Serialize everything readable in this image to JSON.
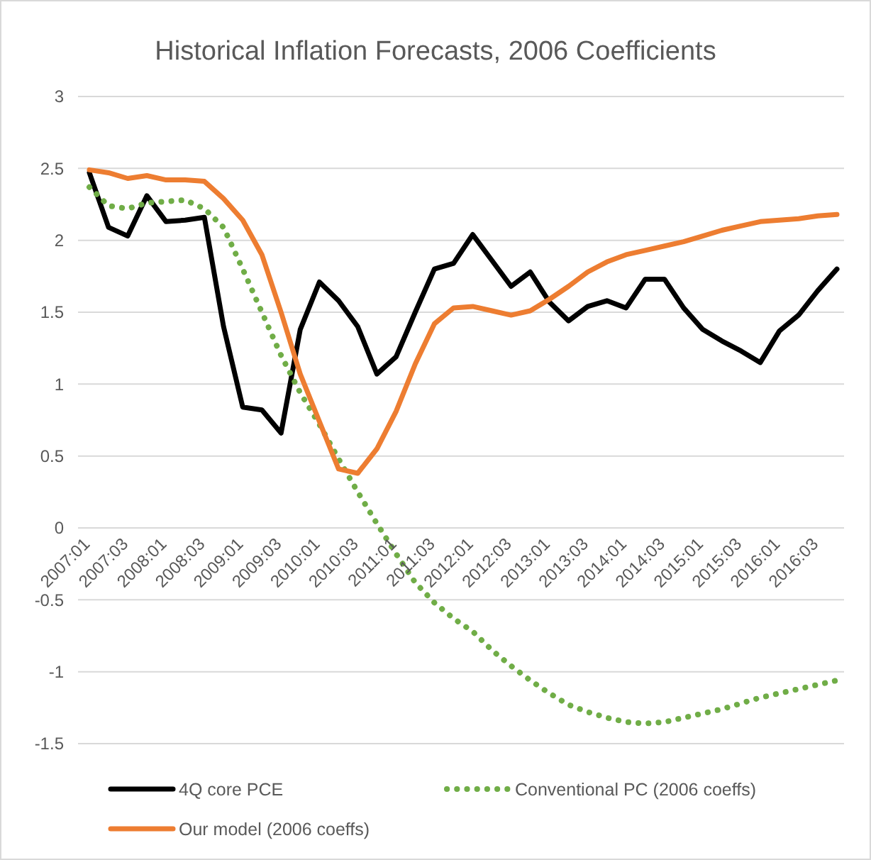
{
  "chart_data": {
    "type": "line",
    "title": "Historical Inflation Forecasts, 2006 Coefficients",
    "categories": [
      "2007:01",
      null,
      "2007:03",
      null,
      "2008:01",
      null,
      "2008:03",
      null,
      "2009:01",
      null,
      "2009:03",
      null,
      "2010:01",
      null,
      "2010:03",
      null,
      "2011:01",
      null,
      "2011:03",
      null,
      "2012:01",
      null,
      "2012:03",
      null,
      "2013:01",
      null,
      "2013:03",
      null,
      "2014:01",
      null,
      "2014:03",
      null,
      "2015:01",
      null,
      "2015:03",
      null,
      "2016:01",
      null,
      "2016:03",
      null
    ],
    "series": [
      {
        "name": "4Q core PCE",
        "color": "#000000",
        "line_style": "solid",
        "values": [
          2.47,
          2.09,
          2.03,
          2.31,
          2.13,
          2.14,
          2.16,
          1.4,
          0.84,
          0.82,
          0.66,
          1.38,
          1.71,
          1.58,
          1.4,
          1.07,
          1.19,
          1.5,
          1.8,
          1.84,
          2.04,
          1.86,
          1.68,
          1.78,
          1.57,
          1.44,
          1.54,
          1.58,
          1.53,
          1.73,
          1.73,
          1.53,
          1.38,
          1.3,
          1.23,
          1.15,
          1.37,
          1.48,
          1.65,
          1.8
        ]
      },
      {
        "name": "Conventional PC (2006 coeffs)",
        "color": "#70ad47",
        "line_style": "dotted",
        "values": [
          2.37,
          2.24,
          2.22,
          2.26,
          2.27,
          2.28,
          2.22,
          2.09,
          1.8,
          1.5,
          1.2,
          0.94,
          0.72,
          0.48,
          0.25,
          0.03,
          -0.18,
          -0.38,
          -0.52,
          -0.63,
          -0.72,
          -0.85,
          -0.96,
          -1.06,
          -1.15,
          -1.23,
          -1.28,
          -1.32,
          -1.35,
          -1.36,
          -1.35,
          -1.32,
          -1.29,
          -1.26,
          -1.22,
          -1.18,
          -1.15,
          -1.12,
          -1.09,
          -1.06
        ]
      },
      {
        "name": "Our model (2006 coeffs)",
        "color": "#ed7d31",
        "line_style": "solid",
        "values": [
          2.49,
          2.47,
          2.43,
          2.45,
          2.42,
          2.42,
          2.41,
          2.29,
          2.14,
          1.9,
          1.5,
          1.07,
          0.74,
          0.41,
          0.38,
          0.55,
          0.81,
          1.14,
          1.42,
          1.53,
          1.54,
          1.51,
          1.48,
          1.51,
          1.59,
          1.68,
          1.78,
          1.85,
          1.9,
          1.93,
          1.96,
          1.99,
          2.03,
          2.07,
          2.1,
          2.13,
          2.14,
          2.15,
          2.17,
          2.18
        ]
      }
    ],
    "ylim": [
      -1.5,
      3
    ],
    "yticks": [
      -1.5,
      -1,
      -0.5,
      0,
      0.5,
      1,
      1.5,
      2,
      2.5,
      3
    ],
    "grid": "y",
    "legend": "bottom",
    "marker": "none"
  }
}
